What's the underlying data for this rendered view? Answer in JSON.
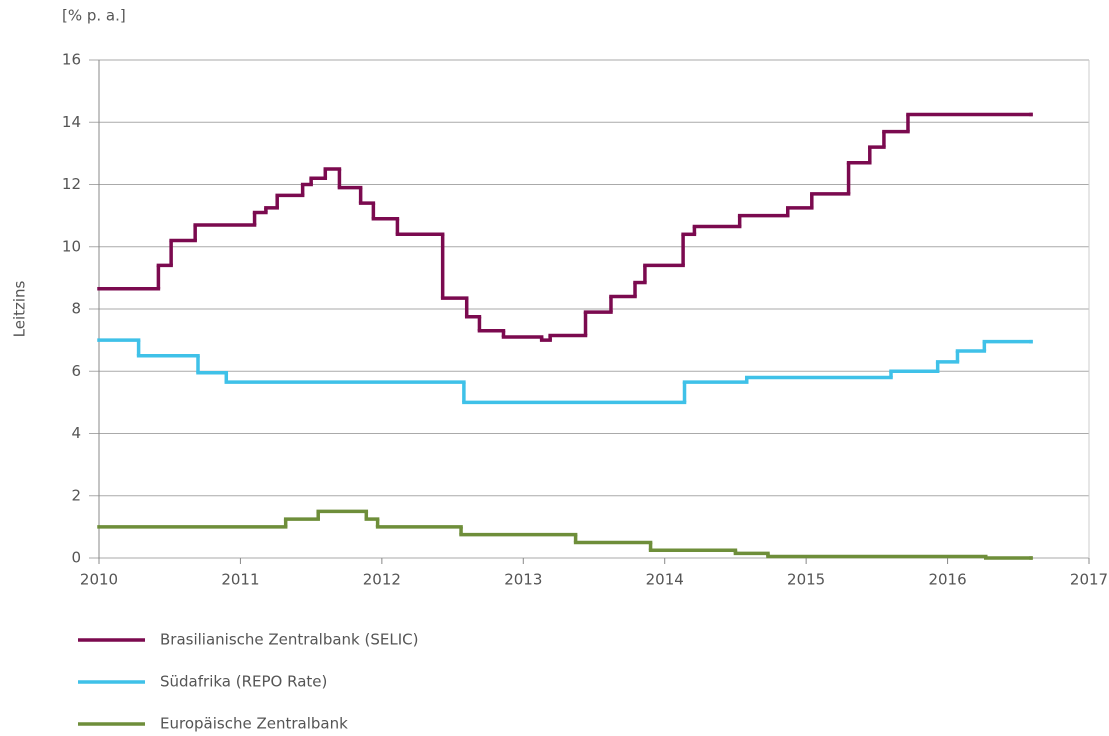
{
  "chart_data": {
    "type": "line",
    "drawstyle": "steps-post",
    "y_unit": "[% p. a.]",
    "ylabel": "Leitzins",
    "xlim": [
      2010,
      2017
    ],
    "xticks": [
      2010,
      2011,
      2012,
      2013,
      2014,
      2015,
      2016,
      2017
    ],
    "ylim": [
      0,
      16
    ],
    "yticks": [
      0,
      2,
      4,
      6,
      8,
      10,
      12,
      14,
      16
    ],
    "grid": true,
    "series": [
      {
        "name": "Brasilianische Zentralbank (SELIC)",
        "color": "#7b0a4f",
        "x": [
          2010.0,
          2010.42,
          2010.51,
          2010.68,
          2011.1,
          2011.18,
          2011.26,
          2011.44,
          2011.5,
          2011.6,
          2011.7,
          2011.85,
          2011.94,
          2012.11,
          2012.43,
          2012.6,
          2012.69,
          2012.86,
          2013.13,
          2013.19,
          2013.44,
          2013.62,
          2013.79,
          2013.86,
          2014.13,
          2014.21,
          2014.53,
          2014.87,
          2015.04,
          2015.3,
          2015.45,
          2015.55,
          2015.72,
          2016.59
        ],
        "values": [
          8.65,
          9.4,
          10.2,
          10.7,
          11.1,
          11.25,
          11.65,
          12.0,
          12.2,
          12.5,
          11.9,
          11.4,
          10.9,
          10.4,
          8.35,
          7.75,
          7.3,
          7.1,
          7.0,
          7.15,
          7.9,
          8.4,
          8.85,
          9.4,
          10.4,
          10.65,
          11.0,
          11.25,
          11.7,
          12.7,
          13.2,
          13.7,
          14.25,
          14.25
        ]
      },
      {
        "name": "Südafrika (REPO Rate)",
        "color": "#3fc1e8",
        "x": [
          2010.0,
          2010.28,
          2010.7,
          2010.9,
          2012.58,
          2014.14,
          2014.58,
          2015.6,
          2015.93,
          2016.07,
          2016.26,
          2016.59
        ],
        "values": [
          7.0,
          6.5,
          5.95,
          5.65,
          5.0,
          5.65,
          5.8,
          6.0,
          6.3,
          6.65,
          6.95,
          6.95
        ]
      },
      {
        "name": "Europäische Zentralbank",
        "color": "#6e8e3a",
        "x": [
          2010.0,
          2011.32,
          2011.55,
          2011.89,
          2011.97,
          2012.56,
          2013.37,
          2013.9,
          2014.5,
          2014.73,
          2016.27,
          2016.59
        ],
        "values": [
          1.0,
          1.25,
          1.5,
          1.25,
          1.0,
          0.75,
          0.5,
          0.25,
          0.15,
          0.05,
          0.0,
          0.0
        ]
      }
    ]
  }
}
